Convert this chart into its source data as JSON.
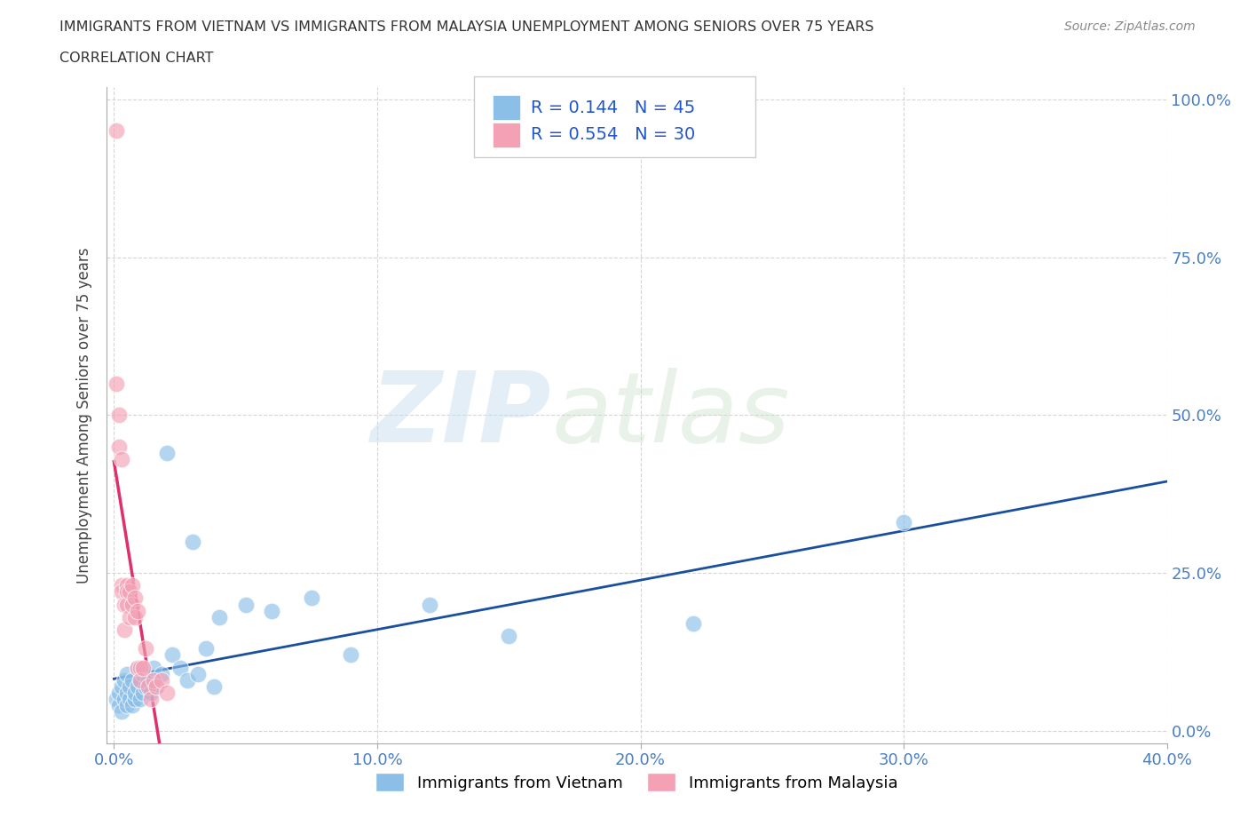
{
  "title_line1": "IMMIGRANTS FROM VIETNAM VS IMMIGRANTS FROM MALAYSIA UNEMPLOYMENT AMONG SENIORS OVER 75 YEARS",
  "title_line2": "CORRELATION CHART",
  "source_text": "Source: ZipAtlas.com",
  "ylabel": "Unemployment Among Seniors over 75 years",
  "xlim": [
    0.0,
    0.4
  ],
  "ylim": [
    0.0,
    1.0
  ],
  "xticks": [
    0.0,
    0.1,
    0.2,
    0.3,
    0.4
  ],
  "xtick_labels": [
    "0.0%",
    "10.0%",
    "20.0%",
    "30.0%",
    "40.0%"
  ],
  "ytick_labels_right": [
    "0.0%",
    "25.0%",
    "50.0%",
    "75.0%",
    "100.0%"
  ],
  "yticks": [
    0.0,
    0.25,
    0.5,
    0.75,
    1.0
  ],
  "vietnam_color": "#8bbfe8",
  "malaysia_color": "#f4a0b5",
  "vietnam_R": 0.144,
  "vietnam_N": 45,
  "malaysia_R": 0.554,
  "malaysia_N": 30,
  "trend_vietnam_color": "#1a4fa0",
  "trend_malaysia_color": "#e0306a",
  "vietnam_x": [
    0.001,
    0.002,
    0.002,
    0.003,
    0.003,
    0.004,
    0.004,
    0.005,
    0.005,
    0.005,
    0.006,
    0.006,
    0.007,
    0.007,
    0.008,
    0.008,
    0.009,
    0.009,
    0.01,
    0.01,
    0.011,
    0.011,
    0.012,
    0.013,
    0.014,
    0.015,
    0.016,
    0.018,
    0.02,
    0.022,
    0.025,
    0.028,
    0.03,
    0.032,
    0.035,
    0.038,
    0.04,
    0.05,
    0.06,
    0.075,
    0.09,
    0.12,
    0.15,
    0.22,
    0.3
  ],
  "vietnam_y": [
    0.05,
    0.04,
    0.06,
    0.03,
    0.07,
    0.05,
    0.08,
    0.04,
    0.06,
    0.09,
    0.05,
    0.07,
    0.04,
    0.08,
    0.05,
    0.06,
    0.07,
    0.1,
    0.05,
    0.08,
    0.06,
    0.09,
    0.07,
    0.08,
    0.06,
    0.1,
    0.07,
    0.09,
    0.44,
    0.12,
    0.1,
    0.08,
    0.3,
    0.09,
    0.13,
    0.07,
    0.18,
    0.2,
    0.19,
    0.21,
    0.12,
    0.2,
    0.15,
    0.17,
    0.33
  ],
  "malaysia_x": [
    0.001,
    0.001,
    0.002,
    0.002,
    0.003,
    0.003,
    0.003,
    0.004,
    0.004,
    0.005,
    0.005,
    0.005,
    0.006,
    0.006,
    0.007,
    0.007,
    0.008,
    0.008,
    0.009,
    0.009,
    0.01,
    0.01,
    0.011,
    0.012,
    0.013,
    0.014,
    0.015,
    0.016,
    0.018,
    0.02
  ],
  "malaysia_y": [
    0.95,
    0.55,
    0.5,
    0.45,
    0.43,
    0.23,
    0.22,
    0.2,
    0.16,
    0.23,
    0.22,
    0.2,
    0.18,
    0.22,
    0.2,
    0.23,
    0.18,
    0.21,
    0.1,
    0.19,
    0.1,
    0.08,
    0.1,
    0.13,
    0.07,
    0.05,
    0.08,
    0.07,
    0.08,
    0.06
  ]
}
